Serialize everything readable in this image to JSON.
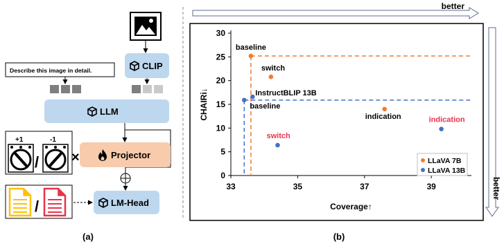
{
  "panel_a": {
    "caption": "(a)",
    "prompt_text": "Describe this image in detail.",
    "clip_label": "CLIP",
    "llm_label": "LLM",
    "projector_label": "Projector",
    "lmhead_label": "LM-Head",
    "knob_plus": "+1",
    "knob_minus": "-1",
    "slash": "/",
    "times": "×",
    "colors": {
      "module_blue": "#bdd7ee",
      "projector_orange": "#f8cbad",
      "token_dark": "#7f7f7f",
      "token_light": "#c9c9c9",
      "doc_yellow": "#ffc000",
      "doc_red": "#e8334a"
    },
    "icons": [
      "image-icon",
      "cube-icon",
      "fire-icon",
      "knob-icon",
      "document-icon",
      "plus-circle-icon"
    ]
  },
  "panel_b": {
    "caption": "(b)",
    "better_label": "better",
    "better_right_label": "better",
    "chart_data": {
      "type": "scatter",
      "xlabel": "Coverage↑",
      "ylabel": "CHAIRi↓",
      "xlim": [
        33,
        40.2
      ],
      "ylim": [
        0,
        30
      ],
      "xticks": [
        33,
        35,
        37,
        39
      ],
      "yticks": [
        0,
        5,
        10,
        15,
        20,
        25,
        30
      ],
      "grid": false,
      "legend_position": "bottom-right",
      "series": [
        {
          "name": "LLaVA 7B",
          "color": "#ed7d31",
          "points": [
            {
              "label": "baseline",
              "x": 33.6,
              "y": 25.2,
              "label_color": "#000000"
            },
            {
              "label": "switch",
              "x": 34.2,
              "y": 20.8,
              "label_color": "#000000"
            },
            {
              "label": "indication",
              "x": 37.6,
              "y": 14.0,
              "label_color": "#000000"
            }
          ]
        },
        {
          "name": "LLaVA 13B",
          "color": "#4472c4",
          "points": [
            {
              "label": "InstructBLIP 13B",
              "x": 33.4,
              "y": 15.9,
              "label_color": "#000000"
            },
            {
              "label": "baseline",
              "x": 33.65,
              "y": 16.6,
              "label_color": "#000000"
            },
            {
              "label": "switch",
              "x": 34.4,
              "y": 6.4,
              "label_color": "#e8334a"
            },
            {
              "label": "indication",
              "x": 39.3,
              "y": 9.8,
              "label_color": "#e8334a"
            }
          ]
        }
      ],
      "reference_lines": [
        {
          "series": "LLaVA 7B",
          "x": 33.6,
          "y": 25.2
        },
        {
          "series": "LLaVA 13B",
          "x": 33.4,
          "y": 15.9
        }
      ]
    }
  }
}
